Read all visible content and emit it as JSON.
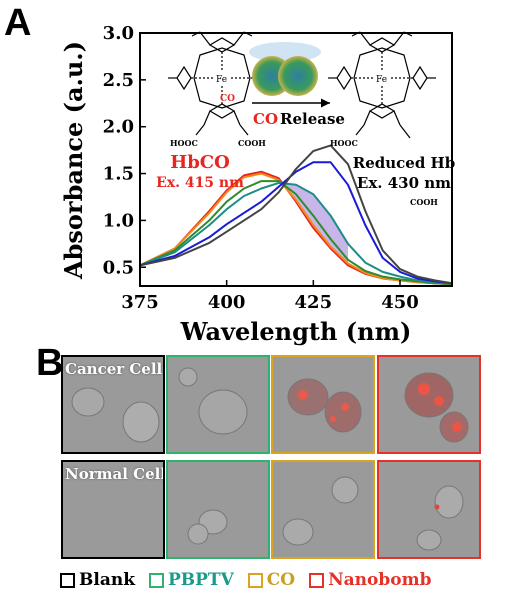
{
  "panel_a_label": "A",
  "panel_b_label": "B",
  "chart_data": {
    "type": "line",
    "xlabel": "Wavelength (nm)",
    "ylabel": "Absorbance (a.u.)",
    "xlim": [
      375,
      465
    ],
    "ylim": [
      0.3,
      3.0
    ],
    "xticks": [
      "375",
      "400",
      "425",
      "450"
    ],
    "xtick_values": [
      375,
      400,
      425,
      450
    ],
    "yticks": [
      "0.5",
      "1.0",
      "1.5",
      "2.0",
      "2.5",
      "3.0"
    ],
    "ytick_values": [
      0.5,
      1.0,
      1.5,
      2.0,
      2.5,
      3.0
    ],
    "grid": false,
    "x": [
      375,
      385,
      395,
      400,
      405,
      410,
      415,
      420,
      425,
      430,
      435,
      440,
      445,
      450,
      455,
      460,
      465
    ],
    "series": [
      {
        "color": "#e8251f",
        "values": [
          0.52,
          0.7,
          1.1,
          1.32,
          1.48,
          1.52,
          1.45,
          1.2,
          0.92,
          0.7,
          0.52,
          0.43,
          0.38,
          0.36,
          0.34,
          0.33,
          0.32
        ]
      },
      {
        "color": "#f08a1a",
        "values": [
          0.52,
          0.7,
          1.08,
          1.3,
          1.46,
          1.5,
          1.43,
          1.22,
          0.95,
          0.72,
          0.54,
          0.44,
          0.38,
          0.36,
          0.34,
          0.33,
          0.32
        ]
      },
      {
        "color": "#2e8b2e",
        "values": [
          0.52,
          0.68,
          1.0,
          1.2,
          1.34,
          1.42,
          1.42,
          1.28,
          1.05,
          0.8,
          0.58,
          0.46,
          0.4,
          0.37,
          0.35,
          0.33,
          0.32
        ]
      },
      {
        "color": "#1c8e84",
        "values": [
          0.52,
          0.66,
          0.95,
          1.12,
          1.26,
          1.34,
          1.4,
          1.38,
          1.28,
          1.05,
          0.75,
          0.55,
          0.45,
          0.4,
          0.36,
          0.34,
          0.33
        ]
      },
      {
        "color": "#1a1ad8",
        "values": [
          0.52,
          0.62,
          0.82,
          0.96,
          1.08,
          1.2,
          1.36,
          1.52,
          1.62,
          1.62,
          1.38,
          0.95,
          0.6,
          0.45,
          0.38,
          0.35,
          0.33
        ]
      },
      {
        "color": "#444444",
        "values": [
          0.52,
          0.6,
          0.76,
          0.88,
          1.0,
          1.12,
          1.3,
          1.55,
          1.74,
          1.8,
          1.6,
          1.1,
          0.68,
          0.48,
          0.4,
          0.36,
          0.33
        ]
      }
    ],
    "annotations": {
      "hbco": "HbCO",
      "hbco_ex": "Ex. 415 nm",
      "reduced": "Reduced Hb",
      "reduced_ex": "Ex. 430 nm",
      "co": "CO",
      "release": "Release",
      "fe": "Fe",
      "co_ligand": "CO",
      "cooh_left": "HOOC",
      "cooh_right": "COOH",
      "cooh_left2": "HOOC",
      "cooh_right2": "COOH"
    }
  },
  "cells": {
    "row_labels": [
      "Cancer Cell",
      "Normal Cell"
    ],
    "column_colors": [
      "#000000",
      "#2db36b",
      "#d9a521",
      "#e53228"
    ]
  },
  "legend": [
    {
      "label": "Blank",
      "color": "#000000",
      "text_color": "#000000"
    },
    {
      "label": "PBPTV",
      "color": "#2db36b",
      "text_color": "#1a9a8a"
    },
    {
      "label": "CO",
      "color": "#d9a521",
      "text_color": "#c9a021"
    },
    {
      "label": "Nanobomb",
      "color": "#e53228",
      "text_color": "#e53228"
    }
  ]
}
